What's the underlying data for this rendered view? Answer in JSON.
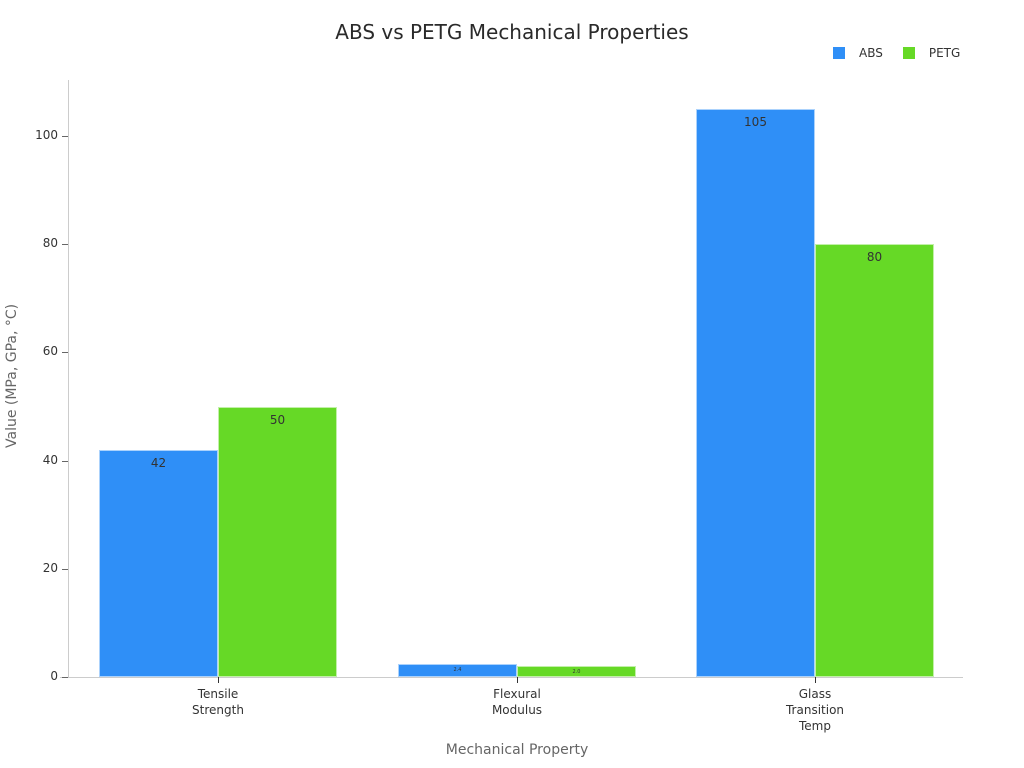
{
  "chart_data": {
    "type": "bar",
    "title": "ABS vs PETG Mechanical Properties",
    "xlabel": "Mechanical Property",
    "ylabel": "Value (MPa, GPa, °C)",
    "categories": [
      "Tensile\nStrength",
      "Flexural\nModulus",
      "Glass\nTransition\nTemp"
    ],
    "series": [
      {
        "name": "ABS",
        "color": "#2f8ff7",
        "values": [
          42,
          2.4,
          105
        ]
      },
      {
        "name": "PETG",
        "color": "#66d926",
        "values": [
          50,
          2.0,
          80
        ]
      }
    ],
    "ylim": [
      0,
      110
    ],
    "yticks": [
      0,
      20,
      40,
      60,
      80,
      100
    ],
    "grid": false,
    "legend_position": "top-right"
  },
  "labels": {
    "abs": [
      "42",
      "2.4",
      "105"
    ],
    "petg": [
      "50",
      "2.0",
      "80"
    ]
  }
}
